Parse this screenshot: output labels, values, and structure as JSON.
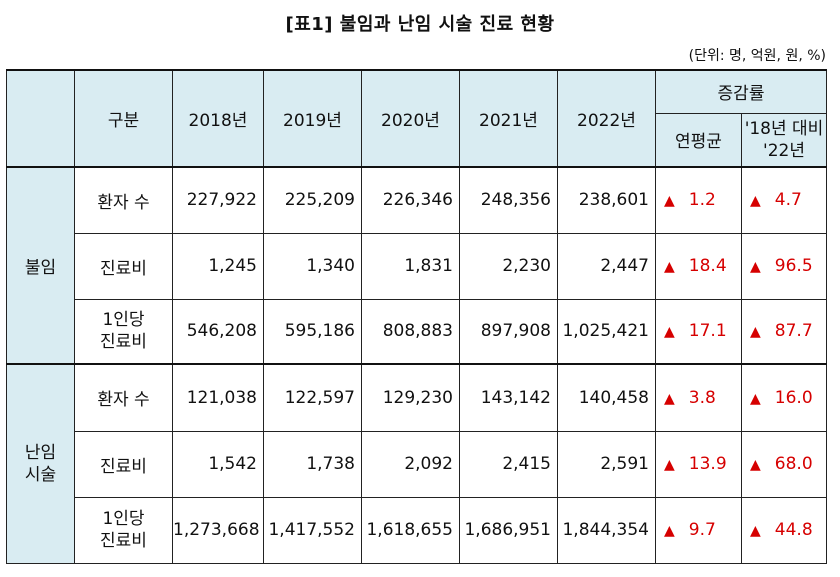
{
  "title": "[표1] 불임과 난임 시술 진료 현황",
  "unit": "(단위: 명, 억원, 원, %)",
  "header": {
    "category": "구분",
    "years": [
      "2018년",
      "2019년",
      "2020년",
      "2021년",
      "2022년"
    ],
    "change_group": "증감률",
    "change_cols": [
      "연평균",
      "'18년 대비\n'22년"
    ],
    "change_col2_line1": "'18년 대비",
    "change_col2_line2": "'22년"
  },
  "marker": "▲",
  "groups": [
    {
      "name": "불임",
      "rows": [
        {
          "label": "환자 수",
          "values": [
            "227,922",
            "225,209",
            "226,346",
            "248,356",
            "238,601"
          ],
          "avg": "1.2",
          "total": "4.7"
        },
        {
          "label": "진료비",
          "values": [
            "1,245",
            "1,340",
            "1,831",
            "2,230",
            "2,447"
          ],
          "avg": "18.4",
          "total": "96.5"
        },
        {
          "label": "1인당 진료비",
          "label1": "1인당",
          "label2": "진료비",
          "values": [
            "546,208",
            "595,186",
            "808,883",
            "897,908",
            "1,025,421"
          ],
          "avg": "17.1",
          "total": "87.7"
        }
      ]
    },
    {
      "name": "난임 시술",
      "name1": "난임",
      "name2": "시술",
      "rows": [
        {
          "label": "환자 수",
          "values": [
            "121,038",
            "122,597",
            "129,230",
            "143,142",
            "140,458"
          ],
          "avg": "3.8",
          "total": "16.0"
        },
        {
          "label": "진료비",
          "values": [
            "1,542",
            "1,738",
            "2,092",
            "2,415",
            "2,591"
          ],
          "avg": "13.9",
          "total": "68.0"
        },
        {
          "label": "1인당 진료비",
          "label1": "1인당",
          "label2": "진료비",
          "values": [
            "1,273,668",
            "1,417,552",
            "1,618,655",
            "1,686,951",
            "1,844,354"
          ],
          "avg": "9.7",
          "total": "44.8"
        }
      ]
    }
  ],
  "colors": {
    "header_bg": "#d9ecf2",
    "up_marker": "#d60000"
  }
}
